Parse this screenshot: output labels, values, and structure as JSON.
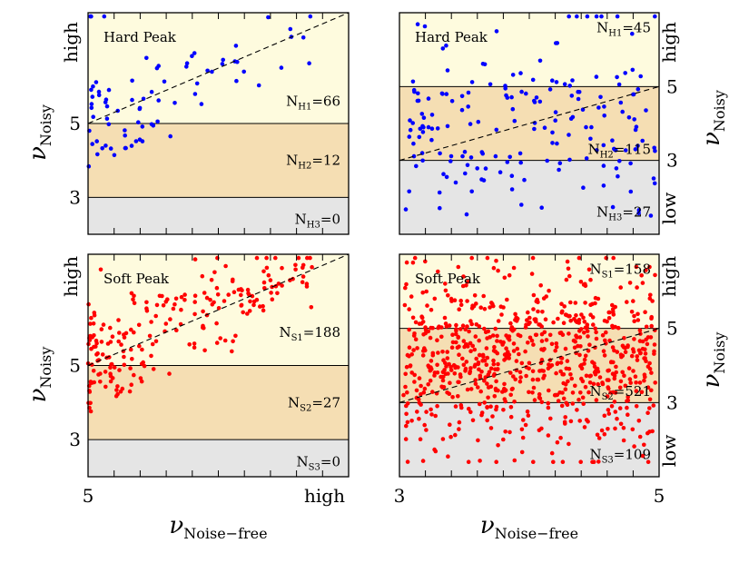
{
  "colors": {
    "high_band": "#fefbde",
    "mid_band": "#f5deb3",
    "low_band": "#e5e5e5",
    "hard_points": "#0000ff",
    "soft_points": "#ff0000"
  },
  "axis_titles": {
    "y_symbol": "ν",
    "y_sub": "Noisy",
    "x_symbol": "ν",
    "x_sub": "Noise−free"
  },
  "chart_data": [
    {
      "type": "scatter",
      "title": "Hard Peak",
      "xlim": [
        5,
        8
      ],
      "ylim": [
        2,
        8
      ],
      "x_ticks": [
        "5",
        "high"
      ],
      "y_ticks": [
        {
          "text": "high",
          "value": 7.2
        },
        {
          "text": "5",
          "value": 5
        },
        {
          "text": "3",
          "value": 3
        }
      ],
      "bands": [
        {
          "from": 5,
          "to": 8,
          "color": "high_band"
        },
        {
          "from": 3,
          "to": 5,
          "color": "mid_band"
        },
        {
          "from": 2,
          "to": 3,
          "color": "low_band"
        }
      ],
      "band_lines": [
        5,
        3
      ],
      "counts": [
        {
          "sym": "N",
          "sub": "H1",
          "val": "=66",
          "y": 5.6
        },
        {
          "sym": "N",
          "sub": "H2",
          "val": "=12",
          "y": 4.0
        },
        {
          "sym": "N",
          "sub": "H3",
          "val": "=0",
          "y": 2.4
        }
      ],
      "point_color": "hard_points",
      "points": {
        "n": 78,
        "seed": 11,
        "mode": "upper",
        "spread": 0.75
      }
    },
    {
      "type": "scatter",
      "title": "Hard Peak",
      "xlim": [
        3,
        5
      ],
      "ylim": [
        1,
        7
      ],
      "x_ticks": [
        "3",
        "5"
      ],
      "y_ticks": [
        {
          "text": "high",
          "value": 6.2
        },
        {
          "text": "5",
          "value": 5
        },
        {
          "text": "3",
          "value": 3
        },
        {
          "text": "low",
          "value": 1.7
        }
      ],
      "bands": [
        {
          "from": 5,
          "to": 7,
          "color": "high_band"
        },
        {
          "from": 3,
          "to": 5,
          "color": "mid_band"
        },
        {
          "from": 1,
          "to": 3,
          "color": "low_band"
        }
      ],
      "band_lines": [
        5,
        3
      ],
      "counts": [
        {
          "sym": "N",
          "sub": "H1",
          "val": "=45",
          "y": 6.6
        },
        {
          "sym": "N",
          "sub": "H2",
          "val": "=115",
          "y": 3.3
        },
        {
          "sym": "N",
          "sub": "H3",
          "val": "=27",
          "y": 1.6
        }
      ],
      "point_color": "hard_points",
      "points": {
        "n": 187,
        "seed": 23,
        "mode": "wide",
        "spread": 1.2
      }
    },
    {
      "type": "scatter",
      "title": "Soft Peak",
      "xlim": [
        5,
        8
      ],
      "ylim": [
        2,
        8
      ],
      "x_ticks": [
        "5",
        "high"
      ],
      "y_ticks": [
        {
          "text": "high",
          "value": 7.4
        },
        {
          "text": "5",
          "value": 5
        },
        {
          "text": "3",
          "value": 3
        }
      ],
      "bands": [
        {
          "from": 5,
          "to": 8,
          "color": "high_band"
        },
        {
          "from": 3,
          "to": 5,
          "color": "mid_band"
        },
        {
          "from": 2,
          "to": 3,
          "color": "low_band"
        }
      ],
      "band_lines": [
        5,
        3
      ],
      "counts": [
        {
          "sym": "N",
          "sub": "S1",
          "val": "=188",
          "y": 5.9
        },
        {
          "sym": "N",
          "sub": "S2",
          "val": "=27",
          "y": 4.0
        },
        {
          "sym": "N",
          "sub": "S3",
          "val": "=0",
          "y": 2.4
        }
      ],
      "point_color": "soft_points",
      "points": {
        "n": 215,
        "seed": 37,
        "mode": "upper",
        "spread": 0.7
      }
    },
    {
      "type": "scatter",
      "title": "Soft Peak",
      "xlim": [
        3,
        5
      ],
      "ylim": [
        1,
        7
      ],
      "x_ticks": [
        "3",
        "5"
      ],
      "y_ticks": [
        {
          "text": "high",
          "value": 6.4
        },
        {
          "text": "5",
          "value": 5
        },
        {
          "text": "3",
          "value": 3
        },
        {
          "text": "low",
          "value": 1.7
        }
      ],
      "bands": [
        {
          "from": 5,
          "to": 7,
          "color": "high_band"
        },
        {
          "from": 3,
          "to": 5,
          "color": "mid_band"
        },
        {
          "from": 1,
          "to": 3,
          "color": "low_band"
        }
      ],
      "band_lines": [
        5,
        3
      ],
      "counts": [
        {
          "sym": "N",
          "sub": "S1",
          "val": "=158",
          "y": 6.6
        },
        {
          "sym": "N",
          "sub": "S2",
          "val": "=521",
          "y": 3.3
        },
        {
          "sym": "N",
          "sub": "S3",
          "val": "=109",
          "y": 1.6
        }
      ],
      "point_color": "soft_points",
      "points": {
        "n": 788,
        "seed": 53,
        "mode": "wide",
        "spread": 1.2
      }
    }
  ]
}
